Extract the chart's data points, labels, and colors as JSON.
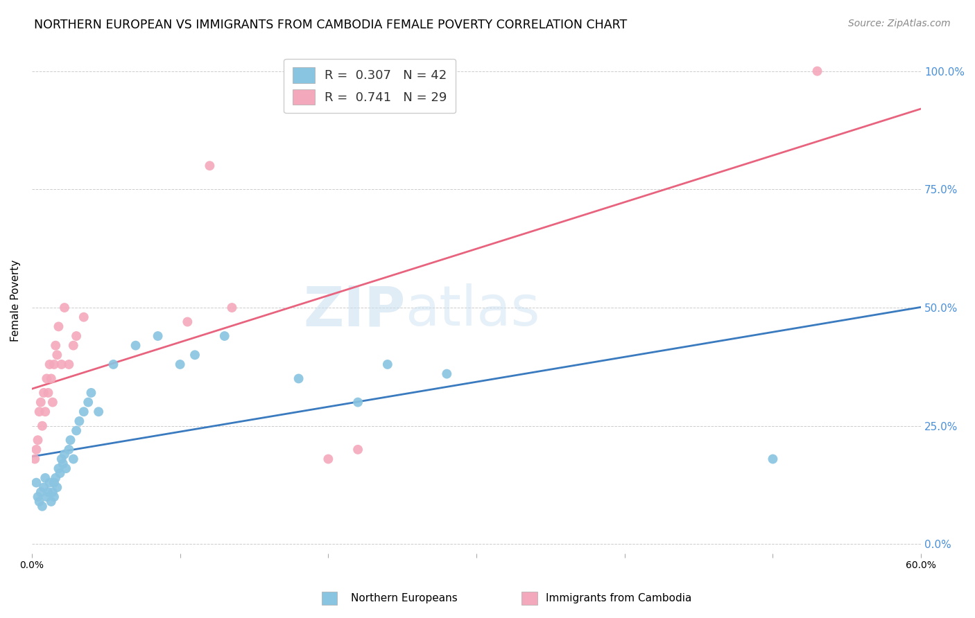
{
  "title": "NORTHERN EUROPEAN VS IMMIGRANTS FROM CAMBODIA FEMALE POVERTY CORRELATION CHART",
  "source": "Source: ZipAtlas.com",
  "ylabel": "Female Poverty",
  "right_yticklabels": [
    "0.0%",
    "25.0%",
    "50.0%",
    "75.0%",
    "100.0%"
  ],
  "right_ytick_vals": [
    0.0,
    25.0,
    50.0,
    75.0,
    100.0
  ],
  "xlim": [
    0.0,
    60.0
  ],
  "ylim": [
    -2.0,
    105.0
  ],
  "r_blue": 0.307,
  "n_blue": 42,
  "r_pink": 0.741,
  "n_pink": 29,
  "blue_color": "#89c4e1",
  "pink_color": "#f4a8bb",
  "blue_line_color": "#3a7abf",
  "pink_line_color": "#e8637e",
  "legend_label_blue": "Northern Europeans",
  "legend_label_pink": "Immigrants from Cambodia",
  "blue_x": [
    0.3,
    0.4,
    0.5,
    0.6,
    0.7,
    0.8,
    0.9,
    1.0,
    1.1,
    1.2,
    1.3,
    1.4,
    1.5,
    1.5,
    1.6,
    1.7,
    1.8,
    1.9,
    2.0,
    2.1,
    2.2,
    2.3,
    2.5,
    2.6,
    2.8,
    3.0,
    3.2,
    3.5,
    3.8,
    4.0,
    4.5,
    5.5,
    7.0,
    8.5,
    10.0,
    11.0,
    13.0,
    18.0,
    22.0,
    24.0,
    28.0,
    50.0
  ],
  "blue_y": [
    13.0,
    10.0,
    9.0,
    11.0,
    8.0,
    12.0,
    14.0,
    10.0,
    11.0,
    13.0,
    9.0,
    11.0,
    13.0,
    10.0,
    14.0,
    12.0,
    16.0,
    15.0,
    18.0,
    17.0,
    19.0,
    16.0,
    20.0,
    22.0,
    18.0,
    24.0,
    26.0,
    28.0,
    30.0,
    32.0,
    28.0,
    38.0,
    42.0,
    44.0,
    38.0,
    40.0,
    44.0,
    35.0,
    30.0,
    38.0,
    36.0,
    18.0
  ],
  "pink_x": [
    0.2,
    0.3,
    0.4,
    0.5,
    0.6,
    0.7,
    0.8,
    0.9,
    1.0,
    1.1,
    1.2,
    1.3,
    1.4,
    1.5,
    1.6,
    1.7,
    1.8,
    2.0,
    2.2,
    2.5,
    2.8,
    3.0,
    3.5,
    10.5,
    12.0,
    13.5,
    20.0,
    22.0,
    53.0
  ],
  "pink_y": [
    18.0,
    20.0,
    22.0,
    28.0,
    30.0,
    25.0,
    32.0,
    28.0,
    35.0,
    32.0,
    38.0,
    35.0,
    30.0,
    38.0,
    42.0,
    40.0,
    46.0,
    38.0,
    50.0,
    38.0,
    42.0,
    44.0,
    48.0,
    47.0,
    80.0,
    50.0,
    18.0,
    20.0,
    100.0
  ]
}
